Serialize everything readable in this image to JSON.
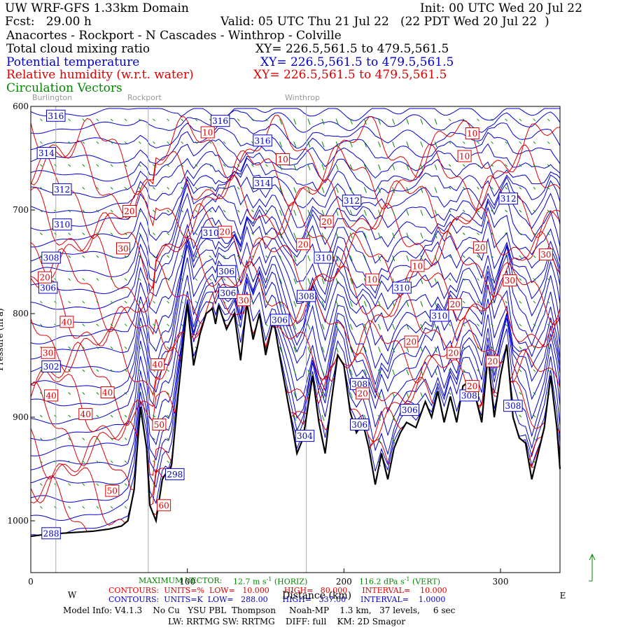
{
  "header": {
    "title": "UW WRF-GFS 1.33km Domain",
    "init": "Init: 00 UTC Wed 20 Jul 22",
    "fcst": "Fcst:   29.00 h",
    "valid": "Valid: 05 UTC Thu 21 Jul 22   (22 PDT Wed 20 Jul 22  )",
    "route": "Anacortes - Rockport - N Cascades - Winthrop - Colville",
    "f1_name": "Total cloud mixing ratio",
    "f1_xy": "XY= 226.5,561.5 to 479.5,561.5",
    "f2_name": "Potential temperature",
    "f2_xy": "XY= 226.5,561.5 to 479.5,561.5",
    "f3_name": "Relative humidity (w.r.t. water)",
    "f3_xy": "XY= 226.5,561.5 to 479.5,561.5",
    "f4_name": "Circulation Vectors"
  },
  "locations": [
    {
      "name": "Burlington",
      "x": 16
    },
    {
      "name": "Rockport",
      "x": 75
    },
    {
      "name": "Winthrop",
      "x": 176
    }
  ],
  "colors": {
    "theta": "#0000cc",
    "rh": "#dd0000",
    "vec": "#008800",
    "terrain": "#000000",
    "marker": "#aaaaaa"
  },
  "chart_data": {
    "type": "line",
    "xlabel": "Distance (km)",
    "ylabel": "Pressure (hPa)",
    "xlim": [
      0,
      338
    ],
    "ylim": [
      1050,
      600
    ],
    "xticks": [
      0,
      100,
      200,
      300
    ],
    "xtick_labels": [
      "0",
      "100",
      "200",
      "300"
    ],
    "yticks": [
      600,
      700,
      800,
      900,
      1000
    ],
    "ytick_labels": [
      "600",
      "700",
      "800",
      "900",
      "1000"
    ],
    "x_end_labels": {
      "left": "W",
      "right": "E"
    },
    "terrain": {
      "x": [
        0,
        10,
        20,
        30,
        40,
        50,
        58,
        62,
        66,
        70,
        74,
        76,
        80,
        84,
        86,
        88,
        90,
        94,
        100,
        104,
        108,
        112,
        116,
        118,
        120,
        125,
        130,
        134,
        138,
        142,
        146,
        150,
        155,
        160,
        166,
        170,
        174,
        178,
        180,
        184,
        188,
        192,
        196,
        200,
        204,
        208,
        212,
        216,
        220,
        224,
        228,
        232,
        236,
        240,
        246,
        252,
        256,
        260,
        264,
        268,
        272,
        276,
        280,
        284,
        288,
        292,
        296,
        300,
        304,
        308,
        312,
        316,
        320,
        324,
        328,
        332,
        336,
        338
      ],
      "y": [
        1015,
        1013,
        1012,
        1011,
        1010,
        1008,
        1005,
        1000,
        970,
        890,
        930,
        985,
        1000,
        960,
        955,
        958,
        945,
        880,
        790,
        850,
        820,
        800,
        795,
        810,
        792,
        815,
        800,
        845,
        790,
        825,
        800,
        840,
        805,
        850,
        900,
        935,
        920,
        880,
        860,
        905,
        935,
        885,
        840,
        850,
        895,
        915,
        905,
        930,
        965,
        935,
        960,
        930,
        915,
        905,
        910,
        885,
        900,
        875,
        905,
        880,
        905,
        870,
        865,
        880,
        905,
        840,
        900,
        860,
        830,
        900,
        920,
        925,
        960,
        935,
        910,
        860,
        910,
        950
      ]
    },
    "series": [
      {
        "name": "Potential temperature",
        "units": "K",
        "low": 288,
        "high": 337,
        "interval": 1
      },
      {
        "name": "Relative humidity (w.r.t. water)",
        "units": "%",
        "low": 10,
        "high": 80,
        "interval": 10
      },
      {
        "name": "Circulation Vectors"
      }
    ],
    "theta_labels": [
      {
        "text": "316",
        "x": 16,
        "p": 609
      },
      {
        "text": "314",
        "x": 10,
        "p": 645
      },
      {
        "text": "312",
        "x": 20,
        "p": 680
      },
      {
        "text": "310",
        "x": 20,
        "p": 714
      },
      {
        "text": "308",
        "x": 13,
        "p": 746
      },
      {
        "text": "306",
        "x": 11,
        "p": 775
      },
      {
        "text": "302",
        "x": 13,
        "p": 851
      },
      {
        "text": "288",
        "x": 13,
        "p": 1012
      },
      {
        "text": "316",
        "x": 121,
        "p": 614
      },
      {
        "text": "316",
        "x": 148,
        "p": 633
      },
      {
        "text": "314",
        "x": 148,
        "p": 674
      },
      {
        "text": "310",
        "x": 115,
        "p": 722
      },
      {
        "text": "306",
        "x": 125,
        "p": 759
      },
      {
        "text": "306",
        "x": 126,
        "p": 780
      },
      {
        "text": "306",
        "x": 159,
        "p": 806
      },
      {
        "text": "308",
        "x": 176,
        "p": 783
      },
      {
        "text": "310",
        "x": 187,
        "p": 746
      },
      {
        "text": "312",
        "x": 205,
        "p": 691
      },
      {
        "text": "310",
        "x": 237,
        "p": 775
      },
      {
        "text": "310",
        "x": 261,
        "p": 802
      },
      {
        "text": "312",
        "x": 305,
        "p": 689
      },
      {
        "text": "308",
        "x": 210,
        "p": 868
      },
      {
        "text": "306",
        "x": 210,
        "p": 907
      },
      {
        "text": "306",
        "x": 242,
        "p": 893
      },
      {
        "text": "308",
        "x": 280,
        "p": 879
      },
      {
        "text": "308",
        "x": 308,
        "p": 889
      },
      {
        "text": "304",
        "x": 175,
        "p": 918
      },
      {
        "text": "298",
        "x": 92,
        "p": 955
      }
    ],
    "rh_labels": [
      {
        "text": "10",
        "x": 113,
        "p": 625
      },
      {
        "text": "10",
        "x": 161,
        "p": 651
      },
      {
        "text": "10",
        "x": 282,
        "p": 626
      },
      {
        "text": "10",
        "x": 277,
        "p": 648
      },
      {
        "text": "20",
        "x": 63,
        "p": 701
      },
      {
        "text": "30",
        "x": 59,
        "p": 737
      },
      {
        "text": "20",
        "x": 9,
        "p": 765
      },
      {
        "text": "40",
        "x": 23,
        "p": 808
      },
      {
        "text": "30",
        "x": 11,
        "p": 838
      },
      {
        "text": "40",
        "x": 13,
        "p": 879
      },
      {
        "text": "40",
        "x": 49,
        "p": 876
      },
      {
        "text": "40",
        "x": 35,
        "p": 897
      },
      {
        "text": "40",
        "x": 81,
        "p": 849
      },
      {
        "text": "50",
        "x": 82,
        "p": 907
      },
      {
        "text": "50",
        "x": 52,
        "p": 971
      },
      {
        "text": "60",
        "x": 85,
        "p": 985
      },
      {
        "text": "20",
        "x": 124,
        "p": 721
      },
      {
        "text": "20",
        "x": 174,
        "p": 733
      },
      {
        "text": "20",
        "x": 189,
        "p": 711
      },
      {
        "text": "30",
        "x": 136,
        "p": 787
      },
      {
        "text": "10",
        "x": 218,
        "p": 767
      },
      {
        "text": "10",
        "x": 247,
        "p": 754
      },
      {
        "text": "20",
        "x": 287,
        "p": 736
      },
      {
        "text": "30",
        "x": 306,
        "p": 768
      },
      {
        "text": "30",
        "x": 329,
        "p": 743
      },
      {
        "text": "20",
        "x": 271,
        "p": 791
      },
      {
        "text": "20",
        "x": 243,
        "p": 827
      },
      {
        "text": "20",
        "x": 270,
        "p": 838
      },
      {
        "text": "20",
        "x": 295,
        "p": 846
      },
      {
        "text": "20",
        "x": 212,
        "p": 877
      },
      {
        "text": "20",
        "x": 282,
        "p": 870
      }
    ],
    "vector_scale_arrow": {
      "x": 338,
      "p": 1010
    }
  },
  "footer": {
    "max_vector_label": "MAXIMUM VECTOR:",
    "max_vector_val": "12.7 m s",
    "max_vector_h": "(HORIZ)",
    "max_vector_v": "116.2 dPa s",
    "max_vector_vv": "(VERT)",
    "c1": "CONTOURS:  UNITS=%  LOW=   10.000      HIGH=   80.000      INTERVAL=    10.000",
    "c2": "CONTOURS:  UNITS=K  LOW=   288.00      HIGH=   337.00      INTERVAL=    1.0000",
    "xlabel": "Distance (km)",
    "model": "Model Info: V4.1.3    No Cu   YSU PBL  Thompson     Noah-MP    1.3 km,   37 levels,     6 sec",
    "model2": "LW: RRTMG SW: RRTMG    DIFF: full    KM: 2D Smagor"
  }
}
